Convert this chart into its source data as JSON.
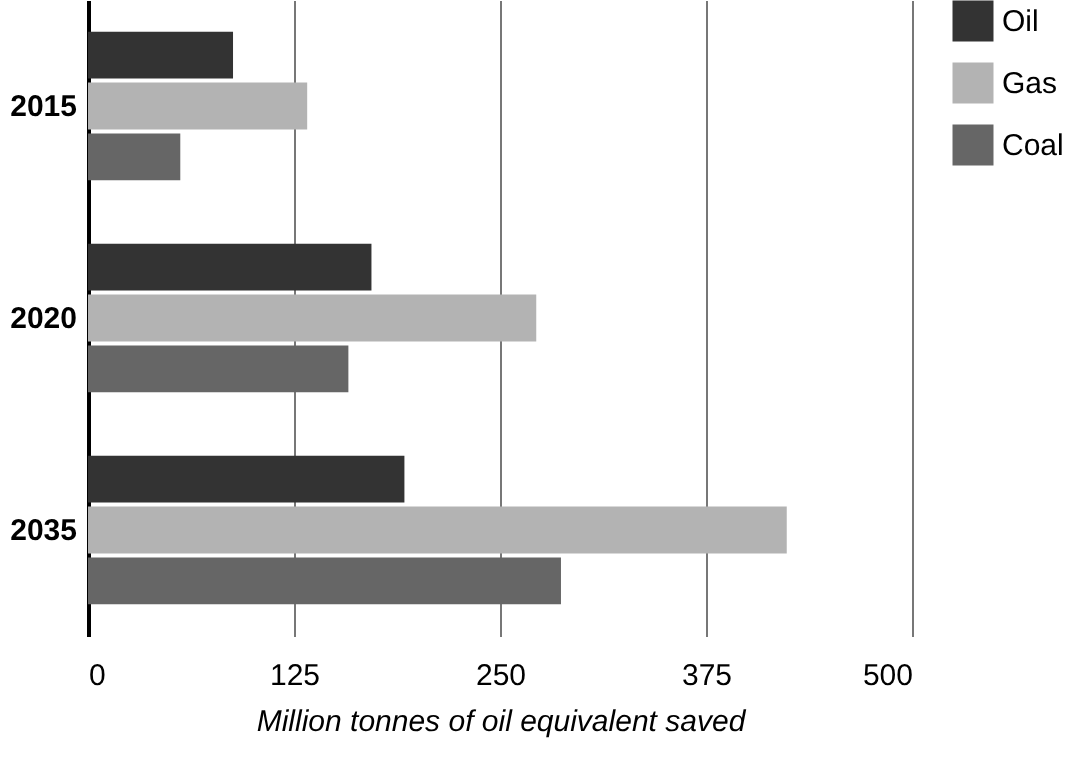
{
  "chart_data": {
    "type": "bar",
    "orientation": "horizontal",
    "xlabel": "Million tonnes of oil equivalent saved",
    "categories": [
      "2015",
      "2020",
      "2035"
    ],
    "series": [
      {
        "name": "Oil",
        "color": "#333333",
        "values": [
          88,
          172,
          192
        ]
      },
      {
        "name": "Gas",
        "color": "#b3b3b3",
        "values": [
          133,
          272,
          424
        ]
      },
      {
        "name": "Coal",
        "color": "#666666",
        "values": [
          56,
          158,
          287
        ]
      }
    ],
    "xlim": [
      0,
      500
    ],
    "xticks": [
      0,
      125,
      250,
      375,
      500
    ],
    "grid": "x",
    "legend": "top right"
  }
}
